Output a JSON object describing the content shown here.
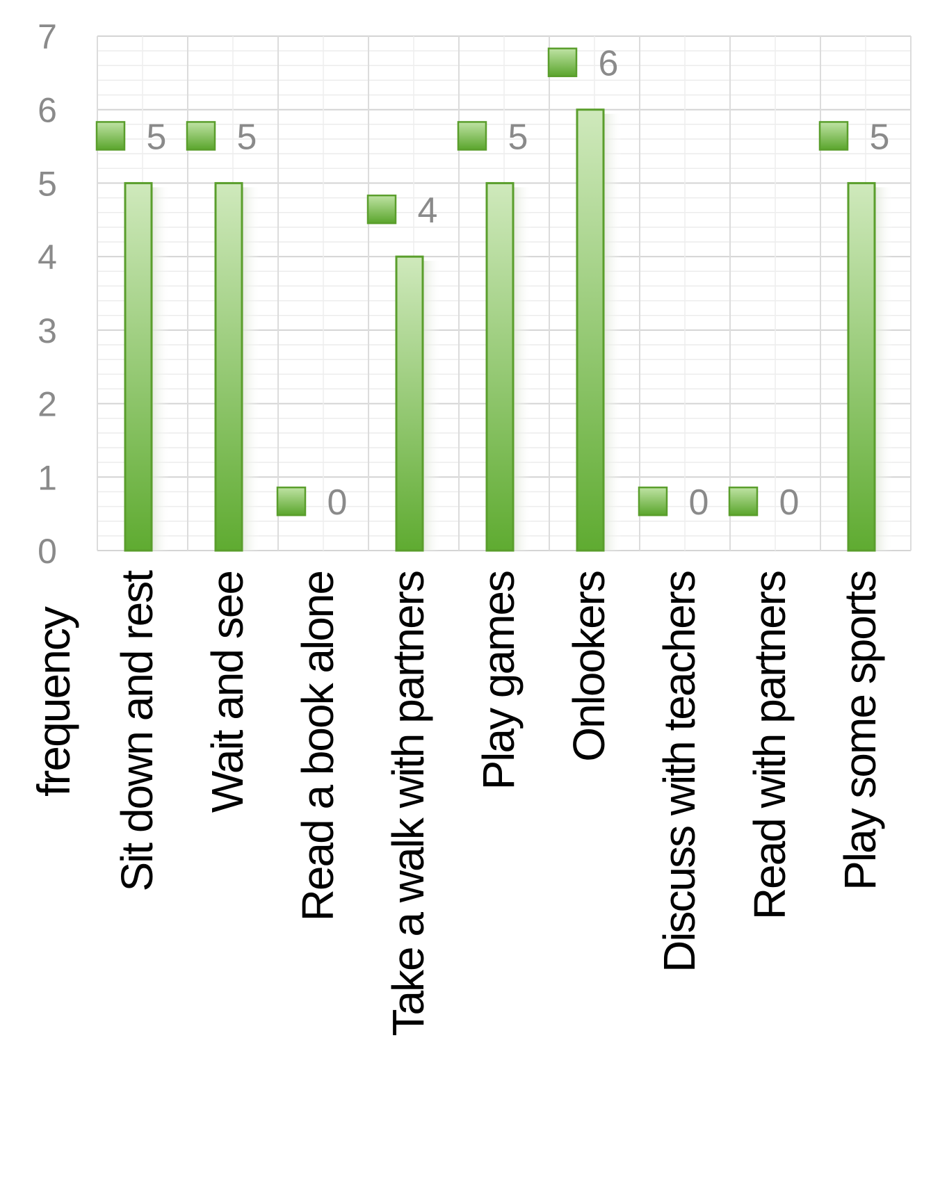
{
  "chart_data": {
    "type": "bar",
    "categories": [
      "Sit down and rest",
      "Wait and see",
      "Read a book alone",
      "Take a walk with partners",
      "Play games",
      "Onlookers",
      "Discuss with teachers",
      "Read with partners",
      "Play some sports"
    ],
    "values": [
      5,
      5,
      0,
      4,
      5,
      6,
      0,
      0,
      5
    ],
    "ylabel": "frequency",
    "ylim": [
      0,
      7
    ],
    "yticks": [
      "0",
      "1",
      "2",
      "3",
      "4",
      "5",
      "6",
      "7"
    ],
    "data_labels": [
      "5",
      "5",
      "0",
      "4",
      "5",
      "6",
      "0",
      "0",
      "5"
    ],
    "grid": true,
    "bar_color": "#6db33f",
    "bar_light_color": "#c9e6b3",
    "bar_border_color": "#5a9e2c",
    "tick_color": "#8a8a8a"
  }
}
